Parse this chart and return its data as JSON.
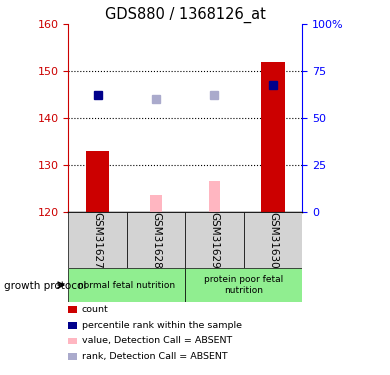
{
  "title": "GDS880 / 1368126_at",
  "samples": [
    "GSM31627",
    "GSM31628",
    "GSM31629",
    "GSM31630"
  ],
  "group1_name": "normal fetal nutrition",
  "group2_name": "protein poor fetal\nnutrition",
  "group_color": "#90EE90",
  "ylim_left": [
    120,
    160
  ],
  "ylim_right": [
    0,
    100
  ],
  "yticks_left": [
    120,
    130,
    140,
    150,
    160
  ],
  "yticks_right": [
    0,
    25,
    50,
    75,
    100
  ],
  "yticklabels_right": [
    "0",
    "25",
    "50",
    "75",
    "100%"
  ],
  "red_bars": [
    133,
    0,
    0,
    152
  ],
  "pink_bars": [
    0,
    123.5,
    126.5,
    0
  ],
  "blue_squares": [
    145,
    0,
    0,
    147
  ],
  "lavender_squares": [
    0,
    144,
    145,
    0
  ],
  "red_bar_width": 0.4,
  "pink_bar_width": 0.2,
  "red_color": "#CC0000",
  "pink_color": "#FFB6C1",
  "blue_color": "#00008B",
  "lavender_color": "#AAAACC",
  "sample_area_color": "#D3D3D3",
  "legend_items": [
    {
      "label": "count",
      "color": "#CC0000"
    },
    {
      "label": "percentile rank within the sample",
      "color": "#00008B"
    },
    {
      "label": "value, Detection Call = ABSENT",
      "color": "#FFB6C1"
    },
    {
      "label": "rank, Detection Call = ABSENT",
      "color": "#AAAACC"
    }
  ]
}
